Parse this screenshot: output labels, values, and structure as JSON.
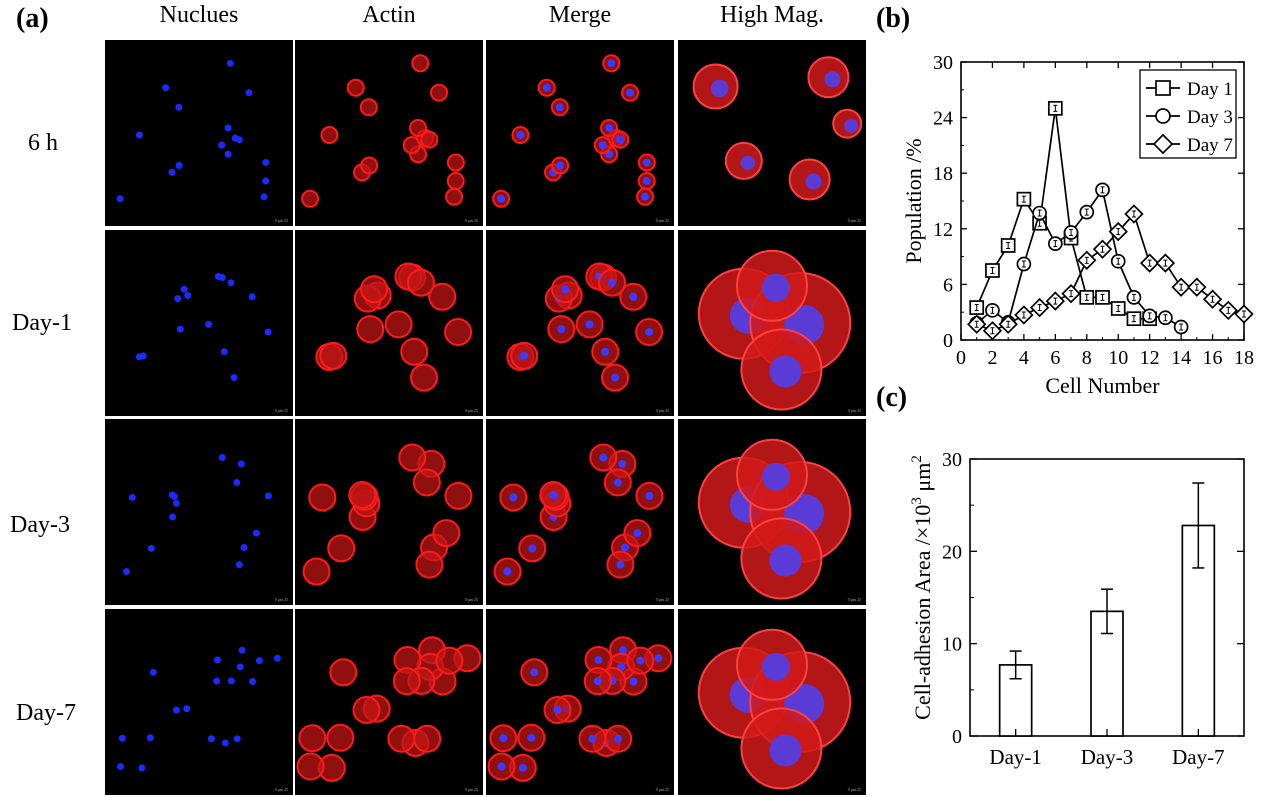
{
  "panel_a": {
    "label": "(a)",
    "columns": [
      "Nuclues",
      "Actin",
      "Merge",
      "High Mag."
    ],
    "rows": [
      "6 h",
      "Day-1",
      "Day-3",
      "Day-7"
    ],
    "scale_text": "0 μm 25",
    "stain_colors": {
      "nucleus": "#1a2bff",
      "actin": "#ff1a1a",
      "background": "#000000"
    }
  },
  "panel_b": {
    "label": "(b)",
    "chart_data": {
      "type": "line",
      "xlabel": "Cell Number",
      "ylabel": "Population /%",
      "xlim": [
        0,
        18
      ],
      "ylim": [
        0,
        30
      ],
      "xticks": [
        "0",
        "2",
        "4",
        "6",
        "8",
        "10",
        "12",
        "14",
        "16",
        "18"
      ],
      "yticks": [
        "0",
        "6",
        "12",
        "18",
        "24",
        "30"
      ],
      "legend_position": "top-right",
      "series": [
        {
          "name": "Day 1",
          "marker": "square",
          "x": [
            1,
            2,
            3,
            4,
            5,
            6,
            7,
            8,
            9,
            10,
            11,
            12
          ],
          "y": [
            3.5,
            7.5,
            10.2,
            15.2,
            12.6,
            25.0,
            11.0,
            4.6,
            4.6,
            3.4,
            2.3,
            2.3
          ]
        },
        {
          "name": "Day 3",
          "marker": "circle",
          "x": [
            1,
            2,
            3,
            4,
            5,
            6,
            7,
            8,
            9,
            10,
            11,
            12,
            13,
            14
          ],
          "y": [
            1.8,
            3.2,
            1.9,
            8.2,
            13.7,
            10.4,
            11.6,
            13.8,
            16.2,
            8.5,
            4.6,
            2.6,
            2.4,
            1.4
          ]
        },
        {
          "name": "Day 7",
          "marker": "diamond",
          "x": [
            1,
            2,
            3,
            4,
            5,
            6,
            7,
            8,
            9,
            10,
            11,
            12,
            13,
            14,
            15,
            16,
            17,
            18
          ],
          "y": [
            1.7,
            1.0,
            1.7,
            2.7,
            3.5,
            4.2,
            5.0,
            8.6,
            9.8,
            11.7,
            13.6,
            8.3,
            8.3,
            5.7,
            5.7,
            4.4,
            3.2,
            2.8
          ]
        }
      ]
    }
  },
  "panel_c": {
    "label": "(c)",
    "chart_data": {
      "type": "bar",
      "categories": [
        "Day-1",
        "Day-3",
        "Day-7"
      ],
      "values": [
        7.7,
        13.5,
        22.8
      ],
      "errors": [
        1.5,
        2.4,
        4.6
      ],
      "ylabel_main": "Cell-adhesion Area /×10",
      "ylabel_sup1": "3",
      "ylabel_unit": " μm",
      "ylabel_sup2": "2",
      "ylim": [
        0,
        30
      ],
      "yticks": [
        "0",
        "10",
        "20",
        "30"
      ]
    }
  }
}
